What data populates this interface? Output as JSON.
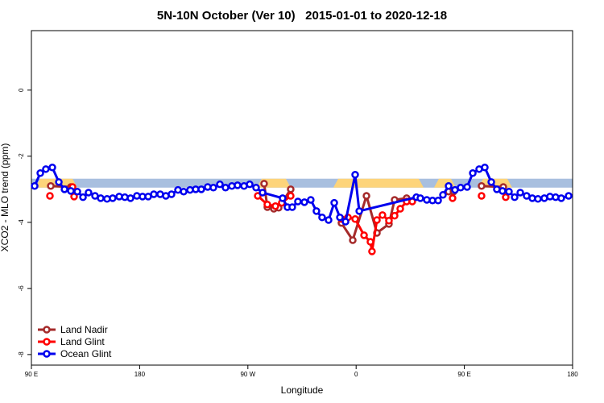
{
  "chart_data": {
    "type": "line",
    "title": "5N-10N October (Ver 10)   2015-01-01 to 2020-12-18",
    "xlabel": "Longitude",
    "ylabel": "XCO2 - MLO trend (ppm)",
    "xlim": [
      90,
      540
    ],
    "ylim": [
      -8.32,
      1.8
    ],
    "xticks": [
      {
        "value": 90,
        "label": "90 E"
      },
      180,
      {
        "value": 270,
        "label": "90 W"
      },
      {
        "value": 360,
        "label": "0"
      },
      {
        "value": 450,
        "label": "90 E"
      },
      {
        "value": 540,
        "label": "180"
      }
    ],
    "yticks": [
      0,
      -2,
      -4,
      -6,
      -8
    ],
    "legend": "bottom-left",
    "reference_band": {
      "color": "#a8bfdf",
      "ylim": [
        -2.95,
        -2.68
      ]
    },
    "highlight_ranges": {
      "color": "#fdd47a",
      "ranges": [
        [
          97.4,
          124.2
        ],
        [
          281.5,
          301.6
        ],
        [
          345.1,
          412.1
        ],
        [
          428.8,
          438.9
        ],
        [
          465.6,
          485.7
        ]
      ]
    },
    "series": [
      {
        "name": "Land Nadir",
        "color": "#a52a2a",
        "x": [
          106.1,
          122.8,
          null,
          283.5,
          286.2,
          291.6,
          295.6,
          305.6,
          null,
          347.8,
          357.2,
          368.6,
          377.3,
          387.3,
          392,
          402,
          null,
          436.9,
          441,
          null,
          464.3,
          482.4
        ],
        "values": [
          -2.9,
          -2.93,
          null,
          -2.83,
          -3.54,
          -3.59,
          -3.56,
          -3.0,
          null,
          -4.02,
          -4.54,
          -3.2,
          -4.32,
          -4.05,
          -3.32,
          -3.27,
          null,
          -3.07,
          -3.07,
          null,
          -2.9,
          -2.93
        ]
      },
      {
        "name": "Land Glint",
        "color": "#ff0000",
        "x": [
          105.4,
          null,
          124.2,
          125.5,
          null,
          278.2,
          286.2,
          292.9,
          298.2,
          305.6,
          null,
          347.8,
          353.2,
          359.2,
          366.6,
          371.9,
          373.2,
          377.3,
          381.9,
          387.3,
          392,
          396.7,
          402,
          406.7,
          null,
          440.2,
          null,
          464.3,
          null,
          484.4
        ],
        "values": [
          -3.2,
          null,
          -2.93,
          -3.22,
          null,
          -3.2,
          -3.46,
          -3.51,
          -3.41,
          -3.2,
          null,
          -3.9,
          -3.85,
          -3.9,
          -4.39,
          -4.59,
          -4.88,
          -3.93,
          -3.78,
          -3.95,
          -3.8,
          -3.59,
          -3.37,
          -3.37,
          null,
          -3.27,
          null,
          -3.2,
          null,
          -3.24
        ]
      },
      {
        "name": "Ocean Glint",
        "color": "#0000ee",
        "x": [
          92.7,
          97.4,
          102,
          107.4,
          112.8,
          117.5,
          122.8,
          128.2,
          132.9,
          137.5,
          142.9,
          147.6,
          152.9,
          157.6,
          163,
          167.7,
          172.4,
          177.7,
          182.4,
          187.1,
          191.8,
          197.1,
          201.8,
          206.5,
          211.9,
          216.6,
          221.9,
          226.6,
          231.3,
          236.6,
          241.3,
          246.7,
          251.4,
          256.7,
          261.4,
          266.8,
          271.5,
          276.8,
          282.2,
          298.9,
          302.9,
          306.9,
          311.6,
          317,
          322.3,
          327,
          331.7,
          337.1,
          341.8,
          346.5,
          351.2,
          359.2,
          362.6,
          410.1,
          413.4,
          418.8,
          423.5,
          428.2,
          432.2,
          436.9,
          442.2,
          446.9,
          452.3,
          457,
          462.3,
          467,
          472.4,
          477,
          481.7,
          487.1,
          491.8,
          496.5,
          501.8,
          506.5,
          511.2,
          516.5,
          521.2,
          525.9,
          530.6,
          536.7
        ],
        "values": [
          -2.9,
          -2.51,
          -2.39,
          -2.34,
          -2.78,
          -3.0,
          -3.05,
          -3.07,
          -3.24,
          -3.1,
          -3.2,
          -3.27,
          -3.29,
          -3.27,
          -3.22,
          -3.24,
          -3.27,
          -3.2,
          -3.22,
          -3.22,
          -3.15,
          -3.15,
          -3.2,
          -3.15,
          -3.02,
          -3.07,
          -3.02,
          -3.0,
          -3.0,
          -2.93,
          -2.95,
          -2.85,
          -2.95,
          -2.9,
          -2.88,
          -2.9,
          -2.85,
          -2.95,
          -3.1,
          -3.27,
          -3.54,
          -3.54,
          -3.37,
          -3.39,
          -3.32,
          -3.66,
          -3.85,
          -3.93,
          -3.41,
          -3.85,
          -3.98,
          -2.56,
          -3.66,
          -3.24,
          -3.27,
          -3.32,
          -3.34,
          -3.34,
          -3.17,
          -2.9,
          -3.02,
          -2.95,
          -2.93,
          -2.51,
          -2.39,
          -2.34,
          -2.78,
          -3.0,
          -3.05,
          -3.07,
          -3.24,
          -3.1,
          -3.2,
          -3.27,
          -3.29,
          -3.27,
          -3.22,
          -3.24,
          -3.27,
          -3.2
        ]
      }
    ]
  }
}
